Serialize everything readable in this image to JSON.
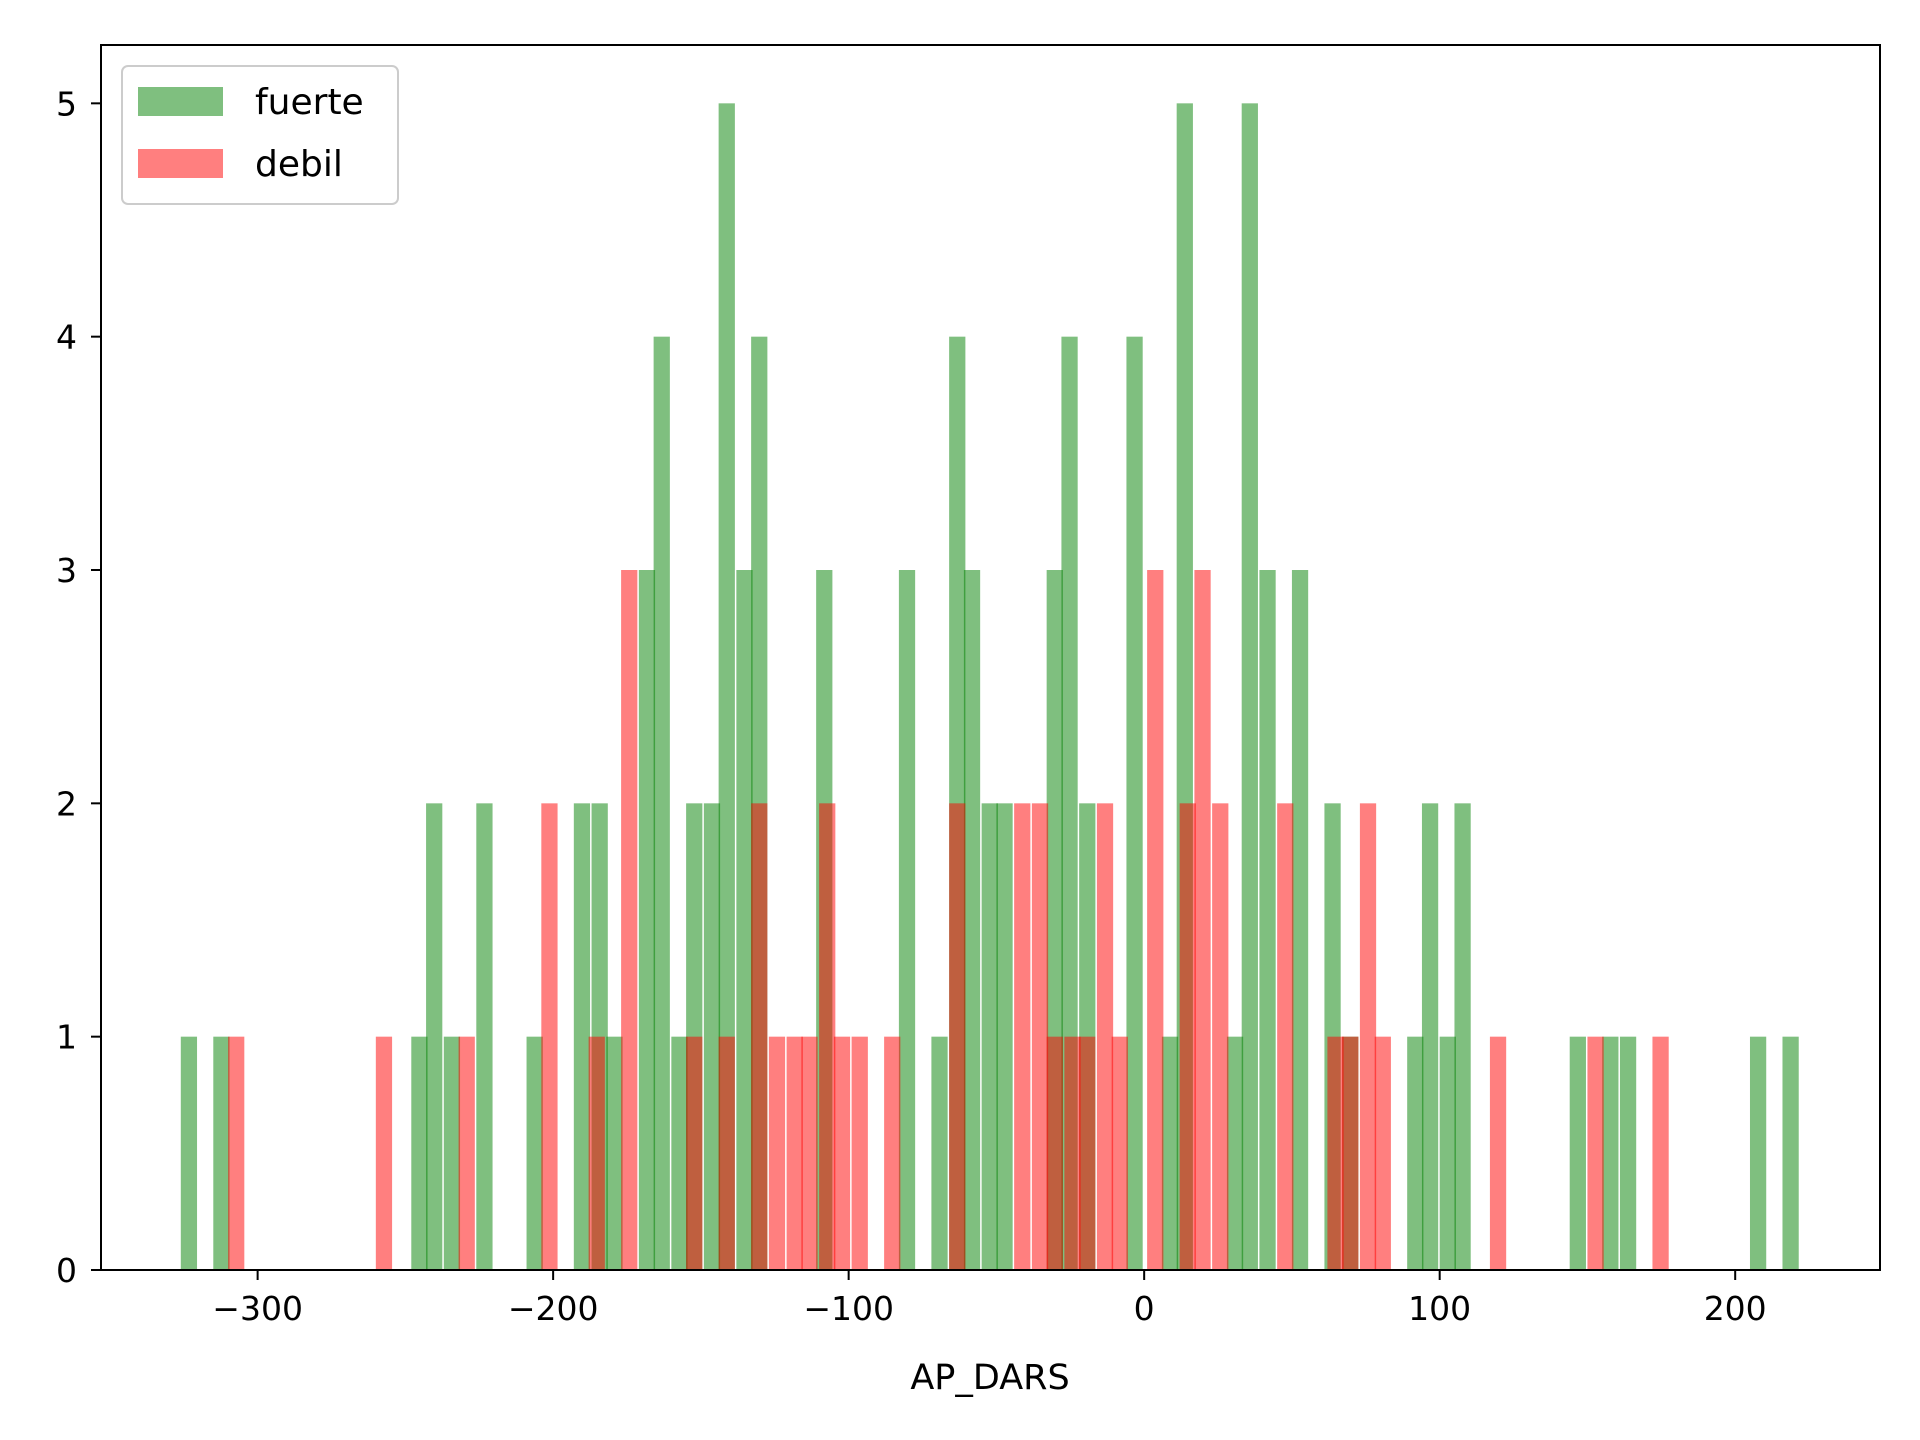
{
  "chart_data": {
    "type": "bar",
    "title": "",
    "xlabel": "AP_DARS",
    "ylabel": "",
    "xlim": [
      -353,
      249
    ],
    "ylim": [
      0,
      5.25
    ],
    "xticks": [
      -300,
      -200,
      -100,
      0,
      100,
      200
    ],
    "xtick_labels": [
      "−300",
      "−200",
      "−100",
      "0",
      "100",
      "200"
    ],
    "yticks": [
      0,
      1,
      2,
      3,
      4,
      5
    ],
    "ytick_labels": [
      "0",
      "1",
      "2",
      "3",
      "4",
      "5"
    ],
    "bin_width": 5.5,
    "grid": false,
    "legend": "upper-left",
    "series": [
      {
        "name": "fuerte",
        "color": "#008000",
        "alpha": 0.5,
        "bins": [
          {
            "x": -326,
            "count": 1
          },
          {
            "x": -315,
            "count": 1
          },
          {
            "x": -248,
            "count": 1
          },
          {
            "x": -243,
            "count": 2
          },
          {
            "x": -237,
            "count": 1
          },
          {
            "x": -226,
            "count": 2
          },
          {
            "x": -209,
            "count": 1
          },
          {
            "x": -193,
            "count": 2
          },
          {
            "x": -187,
            "count": 2
          },
          {
            "x": -182,
            "count": 1
          },
          {
            "x": -171,
            "count": 3
          },
          {
            "x": -166,
            "count": 4
          },
          {
            "x": -160,
            "count": 1
          },
          {
            "x": -155,
            "count": 2
          },
          {
            "x": -149,
            "count": 2
          },
          {
            "x": -144,
            "count": 5
          },
          {
            "x": -138,
            "count": 3
          },
          {
            "x": -133,
            "count": 4
          },
          {
            "x": -111,
            "count": 3
          },
          {
            "x": -83,
            "count": 3
          },
          {
            "x": -72,
            "count": 1
          },
          {
            "x": -66,
            "count": 4
          },
          {
            "x": -61,
            "count": 3
          },
          {
            "x": -55,
            "count": 2
          },
          {
            "x": -50,
            "count": 2
          },
          {
            "x": -33,
            "count": 3
          },
          {
            "x": -28,
            "count": 4
          },
          {
            "x": -22,
            "count": 2
          },
          {
            "x": -6,
            "count": 4
          },
          {
            "x": 6,
            "count": 1
          },
          {
            "x": 11,
            "count": 5
          },
          {
            "x": 28,
            "count": 1
          },
          {
            "x": 33,
            "count": 5
          },
          {
            "x": 39,
            "count": 3
          },
          {
            "x": 50,
            "count": 3
          },
          {
            "x": 61,
            "count": 2
          },
          {
            "x": 67,
            "count": 1
          },
          {
            "x": 89,
            "count": 1
          },
          {
            "x": 94,
            "count": 2
          },
          {
            "x": 100,
            "count": 1
          },
          {
            "x": 105,
            "count": 2
          },
          {
            "x": 144,
            "count": 1
          },
          {
            "x": 155,
            "count": 1
          },
          {
            "x": 161,
            "count": 1
          },
          {
            "x": 205,
            "count": 1
          },
          {
            "x": 216,
            "count": 1
          }
        ]
      },
      {
        "name": "debil",
        "color": "#ff0000",
        "alpha": 0.5,
        "bins": [
          {
            "x": -310,
            "count": 1
          },
          {
            "x": -260,
            "count": 1
          },
          {
            "x": -232,
            "count": 1
          },
          {
            "x": -204,
            "count": 2
          },
          {
            "x": -188,
            "count": 1
          },
          {
            "x": -177,
            "count": 3
          },
          {
            "x": -155,
            "count": 1
          },
          {
            "x": -144,
            "count": 1
          },
          {
            "x": -133,
            "count": 2
          },
          {
            "x": -127,
            "count": 1
          },
          {
            "x": -121,
            "count": 1
          },
          {
            "x": -116,
            "count": 1
          },
          {
            "x": -110,
            "count": 2
          },
          {
            "x": -105,
            "count": 1
          },
          {
            "x": -99,
            "count": 1
          },
          {
            "x": -88,
            "count": 1
          },
          {
            "x": -66,
            "count": 2
          },
          {
            "x": -44,
            "count": 2
          },
          {
            "x": -38,
            "count": 2
          },
          {
            "x": -33,
            "count": 1
          },
          {
            "x": -27,
            "count": 1
          },
          {
            "x": -22,
            "count": 1
          },
          {
            "x": -16,
            "count": 2
          },
          {
            "x": -11,
            "count": 1
          },
          {
            "x": 1,
            "count": 3
          },
          {
            "x": 12,
            "count": 2
          },
          {
            "x": 17,
            "count": 3
          },
          {
            "x": 23,
            "count": 2
          },
          {
            "x": 45,
            "count": 2
          },
          {
            "x": 62,
            "count": 1
          },
          {
            "x": 67,
            "count": 1
          },
          {
            "x": 73,
            "count": 2
          },
          {
            "x": 78,
            "count": 1
          },
          {
            "x": 117,
            "count": 1
          },
          {
            "x": 150,
            "count": 1
          },
          {
            "x": 172,
            "count": 1
          }
        ]
      }
    ]
  }
}
